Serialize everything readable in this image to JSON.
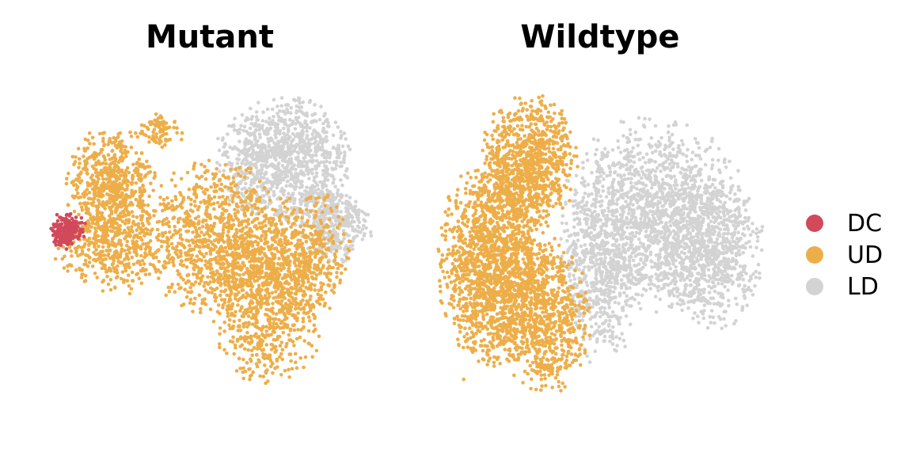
{
  "chart_data": {
    "type": "scatter",
    "panels": [
      {
        "title": "Mutant",
        "series": [
          {
            "name": "DC",
            "color": "#D1495B",
            "regions": [
              {
                "cx": 0.07,
                "cy": 0.44,
                "rx": 0.05,
                "ry": 0.05,
                "n": 140
              },
              {
                "cx": 0.05,
                "cy": 0.47,
                "rx": 0.035,
                "ry": 0.035,
                "n": 60
              }
            ]
          },
          {
            "name": "UD",
            "color": "#EDAE49",
            "regions": [
              {
                "cx": 0.2,
                "cy": 0.32,
                "rx": 0.13,
                "ry": 0.18,
                "n": 650
              },
              {
                "cx": 0.2,
                "cy": 0.52,
                "rx": 0.16,
                "ry": 0.12,
                "n": 350
              },
              {
                "cx": 0.52,
                "cy": 0.47,
                "rx": 0.22,
                "ry": 0.22,
                "n": 900
              },
              {
                "cx": 0.68,
                "cy": 0.66,
                "rx": 0.17,
                "ry": 0.24,
                "n": 900
              },
              {
                "cx": 0.8,
                "cy": 0.52,
                "rx": 0.12,
                "ry": 0.18,
                "n": 350
              },
              {
                "cx": 0.35,
                "cy": 0.14,
                "rx": 0.07,
                "ry": 0.05,
                "n": 80
              }
            ]
          },
          {
            "name": "LD",
            "color": "#D3D3D3",
            "regions": [
              {
                "cx": 0.73,
                "cy": 0.24,
                "rx": 0.19,
                "ry": 0.19,
                "n": 1100
              },
              {
                "cx": 0.88,
                "cy": 0.43,
                "rx": 0.11,
                "ry": 0.11,
                "n": 350
              }
            ]
          }
        ]
      },
      {
        "title": "Wildtype",
        "series": [
          {
            "name": "UD",
            "color": "#EDAE49",
            "regions": [
              {
                "cx": 0.17,
                "cy": 0.55,
                "rx": 0.16,
                "ry": 0.3,
                "n": 1600
              },
              {
                "cx": 0.28,
                "cy": 0.24,
                "rx": 0.14,
                "ry": 0.2,
                "n": 900
              },
              {
                "cx": 0.33,
                "cy": 0.72,
                "rx": 0.13,
                "ry": 0.22,
                "n": 700
              }
            ]
          },
          {
            "name": "LD",
            "color": "#D3D3D3",
            "regions": [
              {
                "cx": 0.66,
                "cy": 0.4,
                "rx": 0.26,
                "ry": 0.28,
                "n": 1500
              },
              {
                "cx": 0.84,
                "cy": 0.52,
                "rx": 0.16,
                "ry": 0.22,
                "n": 700
              },
              {
                "cx": 0.5,
                "cy": 0.58,
                "rx": 0.12,
                "ry": 0.26,
                "n": 550
              }
            ]
          }
        ]
      }
    ],
    "legend": {
      "placement": "right",
      "entries": [
        {
          "label": "DC",
          "color": "#D1495B"
        },
        {
          "label": "UD",
          "color": "#EDAE49"
        },
        {
          "label": "LD",
          "color": "#D3D3D3"
        }
      ]
    },
    "axes": "none",
    "grid": false
  }
}
